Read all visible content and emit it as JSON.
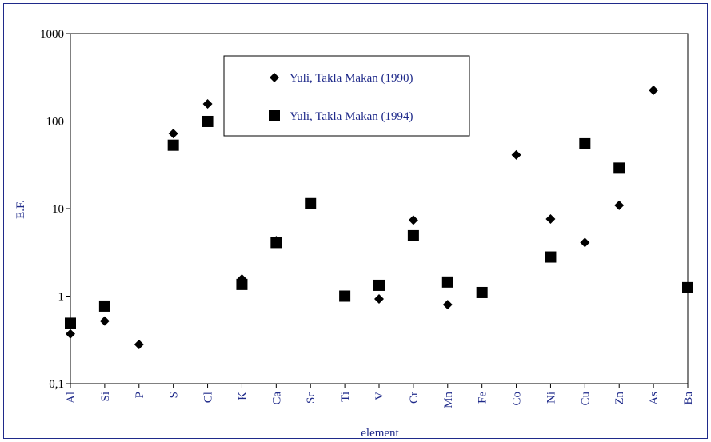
{
  "chart_data": {
    "type": "scatter",
    "x_label": "element",
    "y_label": "E.F.",
    "categories": [
      "Al",
      "Si",
      "P",
      "S",
      "Cl",
      "K",
      "Ca",
      "Sc",
      "Ti",
      "V",
      "Cr",
      "Mn",
      "Fe",
      "Co",
      "Ni",
      "Cu",
      "Zn",
      "As",
      "Ba"
    ],
    "series": [
      {
        "name": "Yuli, Takla Makan (1990)",
        "marker": "diamond",
        "color": "#000000",
        "values": [
          0.37,
          0.52,
          0.28,
          72,
          157,
          1.57,
          4.3,
          null,
          null,
          0.93,
          7.4,
          0.8,
          null,
          41,
          7.6,
          4.1,
          10.9,
          225,
          null
        ]
      },
      {
        "name": "Yuli, Takla Makan (1994)",
        "marker": "square",
        "color": "#000000",
        "values": [
          0.49,
          0.77,
          null,
          53,
          99,
          1.36,
          4.1,
          11.4,
          1.0,
          1.33,
          4.9,
          1.45,
          1.1,
          null,
          2.8,
          55,
          29,
          null,
          1.25
        ]
      }
    ],
    "log_y": true,
    "ylim": [
      0.1,
      1000
    ],
    "yticks": [
      {
        "value": 0.1,
        "label": "0,1"
      },
      1,
      10,
      100,
      1000
    ]
  }
}
